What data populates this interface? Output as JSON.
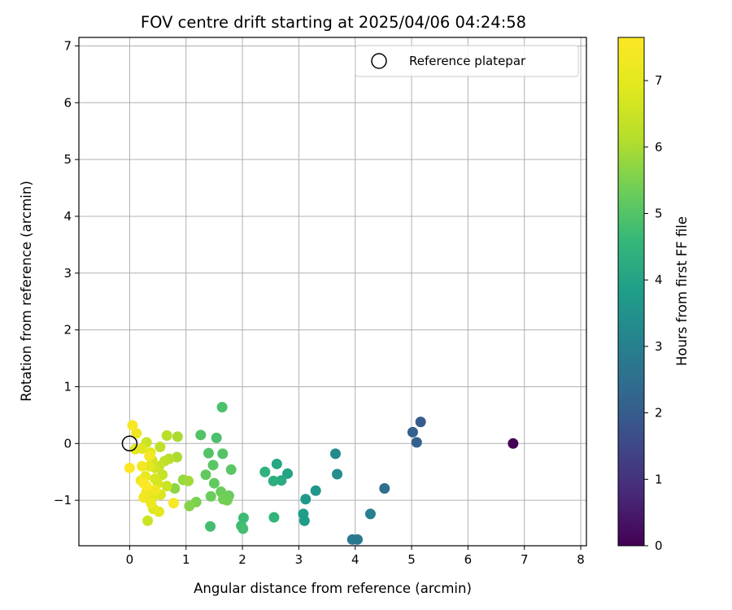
{
  "chart_data": {
    "type": "scatter",
    "title": "FOV centre drift starting at 2025/04/06 04:24:58",
    "xlabel": "Angular distance from reference (arcmin)",
    "ylabel": "Rotation from reference (arcmin)",
    "xlim": [
      -0.9,
      8.1
    ],
    "ylim": [
      -1.8,
      7.15
    ],
    "xticks": [
      0,
      1,
      2,
      3,
      4,
      5,
      6,
      7,
      8
    ],
    "yticks": [
      -1,
      0,
      1,
      2,
      3,
      4,
      5,
      6,
      7
    ],
    "grid": true,
    "legend": {
      "position": "top-right",
      "label": "Reference platepar"
    },
    "colorbar": {
      "label": "Hours from first FF file",
      "range": [
        0,
        7.65
      ],
      "ticks": [
        0,
        1,
        2,
        3,
        4,
        5,
        6,
        7
      ],
      "colormap": "viridis"
    },
    "reference_point": {
      "x": 0,
      "y": 0
    },
    "points": [
      {
        "x": 6.8,
        "y": 0.0,
        "h": 0.0
      },
      {
        "x": 5.16,
        "y": 0.38,
        "h": 2.0
      },
      {
        "x": 5.02,
        "y": 0.2,
        "h": 2.1
      },
      {
        "x": 5.09,
        "y": 0.02,
        "h": 2.1
      },
      {
        "x": 4.52,
        "y": -0.79,
        "h": 2.5
      },
      {
        "x": 3.95,
        "y": -1.69,
        "h": 2.8
      },
      {
        "x": 4.04,
        "y": -1.69,
        "h": 2.8
      },
      {
        "x": 4.27,
        "y": -1.24,
        "h": 3.0
      },
      {
        "x": 3.65,
        "y": -0.18,
        "h": 3.3
      },
      {
        "x": 3.68,
        "y": -0.54,
        "h": 3.4
      },
      {
        "x": 3.3,
        "y": -0.83,
        "h": 3.6
      },
      {
        "x": 3.12,
        "y": -0.98,
        "h": 3.7
      },
      {
        "x": 3.08,
        "y": -1.24,
        "h": 3.8
      },
      {
        "x": 3.1,
        "y": -1.36,
        "h": 3.8
      },
      {
        "x": 2.8,
        "y": -0.53,
        "h": 4.0
      },
      {
        "x": 2.61,
        "y": -0.36,
        "h": 4.1
      },
      {
        "x": 2.69,
        "y": -0.65,
        "h": 4.2
      },
      {
        "x": 2.55,
        "y": -0.66,
        "h": 4.3
      },
      {
        "x": 2.4,
        "y": -0.5,
        "h": 4.4
      },
      {
        "x": 2.56,
        "y": -1.3,
        "h": 4.5
      },
      {
        "x": 2.02,
        "y": -1.31,
        "h": 4.7
      },
      {
        "x": 1.98,
        "y": -1.45,
        "h": 4.7
      },
      {
        "x": 2.01,
        "y": -1.5,
        "h": 4.8
      },
      {
        "x": 1.43,
        "y": -1.46,
        "h": 4.8
      },
      {
        "x": 1.64,
        "y": 0.64,
        "h": 4.9
      },
      {
        "x": 1.54,
        "y": 0.1,
        "h": 4.9
      },
      {
        "x": 1.26,
        "y": 0.15,
        "h": 5.0
      },
      {
        "x": 1.4,
        "y": -0.17,
        "h": 5.0
      },
      {
        "x": 1.65,
        "y": -0.18,
        "h": 5.0
      },
      {
        "x": 1.48,
        "y": -0.38,
        "h": 5.1
      },
      {
        "x": 1.8,
        "y": -0.46,
        "h": 5.1
      },
      {
        "x": 1.35,
        "y": -0.55,
        "h": 5.2
      },
      {
        "x": 1.5,
        "y": -0.7,
        "h": 5.2
      },
      {
        "x": 1.62,
        "y": -0.85,
        "h": 5.3
      },
      {
        "x": 1.44,
        "y": -0.93,
        "h": 5.3
      },
      {
        "x": 1.76,
        "y": -0.92,
        "h": 5.3
      },
      {
        "x": 1.66,
        "y": -0.98,
        "h": 5.4
      },
      {
        "x": 1.73,
        "y": -1.0,
        "h": 5.4
      },
      {
        "x": 1.18,
        "y": -1.03,
        "h": 5.5
      },
      {
        "x": 1.06,
        "y": -1.1,
        "h": 5.6
      },
      {
        "x": 0.8,
        "y": -0.79,
        "h": 5.7
      },
      {
        "x": 0.95,
        "y": -0.64,
        "h": 5.8
      },
      {
        "x": 1.04,
        "y": -0.66,
        "h": 5.9
      },
      {
        "x": 0.85,
        "y": 0.12,
        "h": 6.0
      },
      {
        "x": 0.84,
        "y": -0.24,
        "h": 6.0
      },
      {
        "x": 0.66,
        "y": 0.14,
        "h": 6.2
      },
      {
        "x": 0.7,
        "y": -0.27,
        "h": 6.2
      },
      {
        "x": 0.54,
        "y": -0.06,
        "h": 6.3
      },
      {
        "x": 0.62,
        "y": -0.31,
        "h": 6.3
      },
      {
        "x": 0.52,
        "y": -0.4,
        "h": 6.4
      },
      {
        "x": 0.58,
        "y": -0.55,
        "h": 6.4
      },
      {
        "x": 0.3,
        "y": 0.02,
        "h": 6.5
      },
      {
        "x": 0.66,
        "y": -0.75,
        "h": 6.5
      },
      {
        "x": 0.32,
        "y": -1.36,
        "h": 6.5
      },
      {
        "x": 0.45,
        "y": -0.43,
        "h": 6.6
      },
      {
        "x": 0.4,
        "y": -0.3,
        "h": 6.6
      },
      {
        "x": 0.45,
        "y": -0.62,
        "h": 6.7
      },
      {
        "x": 0.5,
        "y": -0.7,
        "h": 6.7
      },
      {
        "x": 0.55,
        "y": -0.9,
        "h": 6.8
      },
      {
        "x": 0.42,
        "y": -1.15,
        "h": 6.8
      },
      {
        "x": 0.37,
        "y": -0.16,
        "h": 6.9
      },
      {
        "x": 0.22,
        "y": -0.09,
        "h": 6.9
      },
      {
        "x": 0.4,
        "y": -0.95,
        "h": 6.9
      },
      {
        "x": 0.52,
        "y": -1.2,
        "h": 7.0
      },
      {
        "x": 0.1,
        "y": -0.1,
        "h": 7.0
      },
      {
        "x": 0.35,
        "y": -0.4,
        "h": 7.0
      },
      {
        "x": 0.28,
        "y": -0.58,
        "h": 7.1
      },
      {
        "x": 0.3,
        "y": -0.85,
        "h": 7.1
      },
      {
        "x": 0.2,
        "y": -0.65,
        "h": 7.2
      },
      {
        "x": 0.38,
        "y": -1.05,
        "h": 7.2
      },
      {
        "x": 0.12,
        "y": 0.18,
        "h": 7.3
      },
      {
        "x": 0.25,
        "y": -0.95,
        "h": 7.3
      },
      {
        "x": 0.45,
        "y": -0.82,
        "h": 7.3
      },
      {
        "x": 0.35,
        "y": -0.22,
        "h": 7.4
      },
      {
        "x": 0.22,
        "y": -0.4,
        "h": 7.4
      },
      {
        "x": 0.78,
        "y": -1.05,
        "h": 7.5
      },
      {
        "x": 0.05,
        "y": 0.32,
        "h": 7.5
      },
      {
        "x": 0.0,
        "y": -0.43,
        "h": 7.6
      },
      {
        "x": 0.25,
        "y": -0.7,
        "h": 7.6
      },
      {
        "x": 0.3,
        "y": -0.75,
        "h": 7.6
      }
    ]
  }
}
